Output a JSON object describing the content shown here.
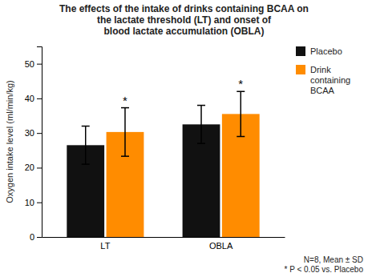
{
  "chart_data": {
    "type": "bar",
    "title": "The effects of the intake of drinks containing BCAA on\nthe lactate threshold (LT) and onset of\nblood lactate accumulation (OBLA)",
    "y_label": "Oxygen intake level (ml/min/kg)",
    "categories": [
      "LT",
      "OBLA"
    ],
    "series": [
      {
        "name": "Placebo",
        "color": "#111111",
        "values": [
          26.5,
          32.5
        ],
        "errors": [
          5.5,
          5.5
        ]
      },
      {
        "name": "Drink\ncontaining\nBCAA",
        "color": "#FF8C00",
        "values": [
          30.3,
          35.5
        ],
        "errors": [
          7.0,
          6.5
        ],
        "significance": [
          "*",
          "*"
        ]
      }
    ],
    "ylim": [
      0,
      55
    ],
    "yticks": [
      0,
      10,
      20,
      30,
      40,
      50
    ],
    "grid": false,
    "legend": "right",
    "annotations": [
      "N=8, Mean ± SD\n* P < 0.05 vs. Placebo"
    ]
  }
}
